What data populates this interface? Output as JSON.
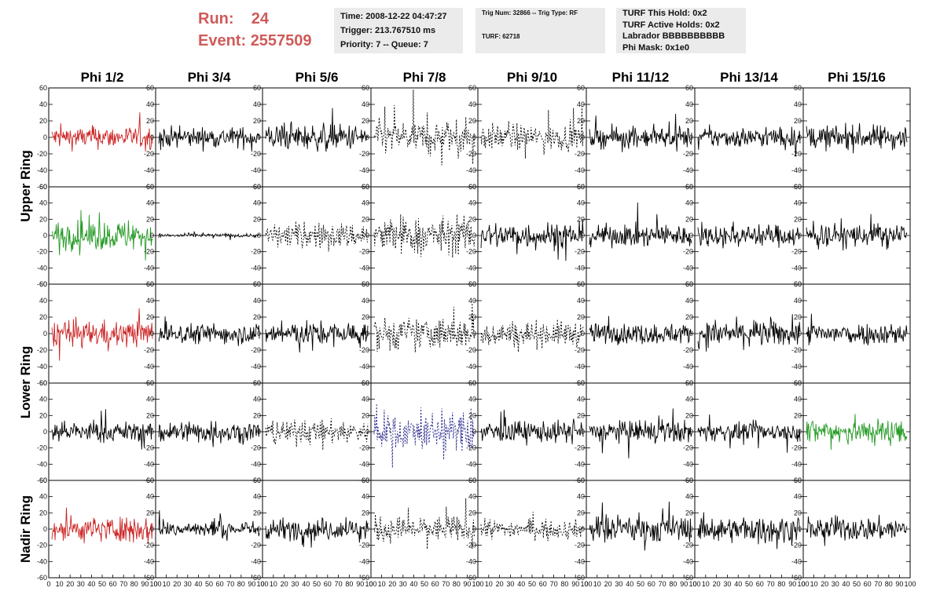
{
  "header": {
    "run_label": "Run:",
    "run_value": "24",
    "event_label": "Event:",
    "event_value": "2557509",
    "run_color": "#d05a5a"
  },
  "info_time": {
    "time": "Time: 2008-12-22 04:47:27",
    "trigger": "Trigger: 213.767510 ms",
    "priority": "Priority: 7 -- Queue: 7"
  },
  "info_trig": {
    "trig_line": "Trig Num: 32866 -- Trig Type: RF",
    "turf_line": "TURF: 62718"
  },
  "info_turf": {
    "hold": "TURF This Hold: 0x2",
    "active": "TURF Active Holds: 0x2",
    "labrador": "Labrador BBBBBBBBBB",
    "phimask": "Phi Mask: 0x1e0"
  },
  "chart_data": {
    "type": "line",
    "columns": [
      "Phi 1/2",
      "Phi 3/4",
      "Phi 5/6",
      "Phi 7/8",
      "Phi 9/10",
      "Phi 11/12",
      "Phi 13/14",
      "Phi 15/16"
    ],
    "rings": [
      "Upper Ring",
      "Lower Ring",
      "Nadir Ring"
    ],
    "xlim": [
      0,
      100
    ],
    "ylim": [
      -60,
      60
    ],
    "x_ticks": [
      "0",
      "10",
      "20",
      "30",
      "40",
      "50",
      "60",
      "70",
      "80",
      "90",
      "100"
    ],
    "y_ticks": [
      "60",
      "40",
      "20",
      "0",
      "-20",
      "-40",
      "-60"
    ],
    "colors": {
      "red": "#cc2222",
      "green": "#229922",
      "blue": "#222288",
      "black": "#000000"
    },
    "panels": [
      [
        {
          "style": "red",
          "amp": 12
        },
        {
          "style": "black",
          "amp": 11
        },
        {
          "style": "black",
          "amp": 14
        },
        {
          "style": "dashed",
          "amp": 18
        },
        {
          "style": "dashed",
          "amp": 14
        },
        {
          "style": "black",
          "amp": 11
        },
        {
          "style": "black",
          "amp": 11
        },
        {
          "style": "black",
          "amp": 13
        }
      ],
      [
        {
          "style": "green",
          "amp": 16
        },
        {
          "style": "black",
          "amp": 2
        },
        {
          "style": "dashed",
          "amp": 14
        },
        {
          "style": "dashed",
          "amp": 20
        },
        {
          "style": "black",
          "amp": 15
        },
        {
          "style": "black",
          "amp": 12
        },
        {
          "style": "black",
          "amp": 12
        },
        {
          "style": "black",
          "amp": 13
        }
      ],
      [
        {
          "style": "red",
          "amp": 14
        },
        {
          "style": "black",
          "amp": 11
        },
        {
          "style": "black",
          "amp": 13
        },
        {
          "style": "dashed",
          "amp": 17
        },
        {
          "style": "dashed",
          "amp": 14
        },
        {
          "style": "black",
          "amp": 11
        },
        {
          "style": "black",
          "amp": 14
        },
        {
          "style": "black",
          "amp": 12
        }
      ],
      [
        {
          "style": "black",
          "amp": 11
        },
        {
          "style": "black",
          "amp": 12
        },
        {
          "style": "dashed",
          "amp": 13
        },
        {
          "style": "blue-dashed",
          "amp": 20
        },
        {
          "style": "black",
          "amp": 12
        },
        {
          "style": "black",
          "amp": 12
        },
        {
          "style": "black",
          "amp": 10
        },
        {
          "style": "green",
          "amp": 15
        }
      ],
      [
        {
          "style": "red",
          "amp": 14
        },
        {
          "style": "black",
          "amp": 9
        },
        {
          "style": "black",
          "amp": 12
        },
        {
          "style": "dashed",
          "amp": 14
        },
        {
          "style": "dashed",
          "amp": 10
        },
        {
          "style": "black",
          "amp": 15
        },
        {
          "style": "black",
          "amp": 14
        },
        {
          "style": "black",
          "amp": 13
        }
      ]
    ]
  }
}
